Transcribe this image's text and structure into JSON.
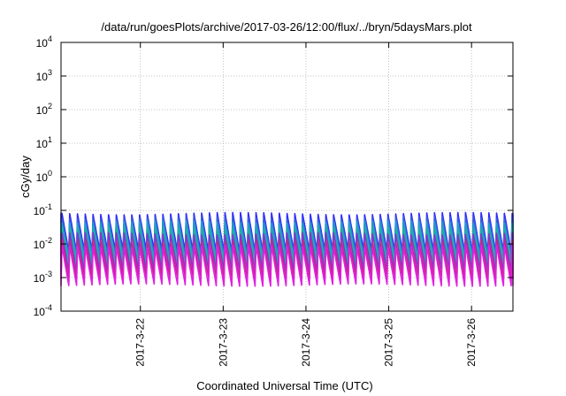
{
  "chart_data": {
    "type": "line",
    "title": "/data/run/goesPlots/archive/2017-03-26/12:00/flux/../bryn/5daysMars.plot",
    "xlabel": "Coordinated Universal Time (UTC)",
    "ylabel": "cGy/day",
    "yscale": "log",
    "ylim": [
      0.0001,
      10000
    ],
    "y_ticks": [
      {
        "exp": "-4",
        "value": 0.0001
      },
      {
        "exp": "-3",
        "value": 0.001
      },
      {
        "exp": "-2",
        "value": 0.01
      },
      {
        "exp": "-1",
        "value": 0.1
      },
      {
        "exp": "0",
        "value": 1
      },
      {
        "exp": "1",
        "value": 10
      },
      {
        "exp": "2",
        "value": 100
      },
      {
        "exp": "3",
        "value": 1000
      },
      {
        "exp": "4",
        "value": 10000
      }
    ],
    "y_tick_base": "10",
    "xlim": [
      "2017-03-21T01:00",
      "2017-03-26T12:00"
    ],
    "x_ticks": [
      "2017-3-22",
      "2017-3-23",
      "2017-3-24",
      "2017-3-25",
      "2017-3-26"
    ],
    "x_tick_dates": [
      "2017-03-22T00:00",
      "2017-03-23T00:00",
      "2017-03-24T00:00",
      "2017-03-25T00:00",
      "2017-03-26T00:00"
    ],
    "grid": true,
    "cycle_hours": 2.25,
    "series": [
      {
        "color": "#2b2bff",
        "peak": 0.08,
        "trough": 0.006
      },
      {
        "color": "#3a5ce0",
        "peak": 0.06,
        "trough": 0.0045
      },
      {
        "color": "#1fa0c8",
        "peak": 0.045,
        "trough": 0.0035
      },
      {
        "color": "#20b0a0",
        "peak": 0.03,
        "trough": 0.0025
      },
      {
        "color": "#8833cc",
        "peak": 0.02,
        "trough": 0.0016
      },
      {
        "color": "#cc2288",
        "peak": 0.012,
        "trough": 0.001
      },
      {
        "color": "#e020e0",
        "peak": 0.0085,
        "trough": 0.0006
      }
    ]
  }
}
